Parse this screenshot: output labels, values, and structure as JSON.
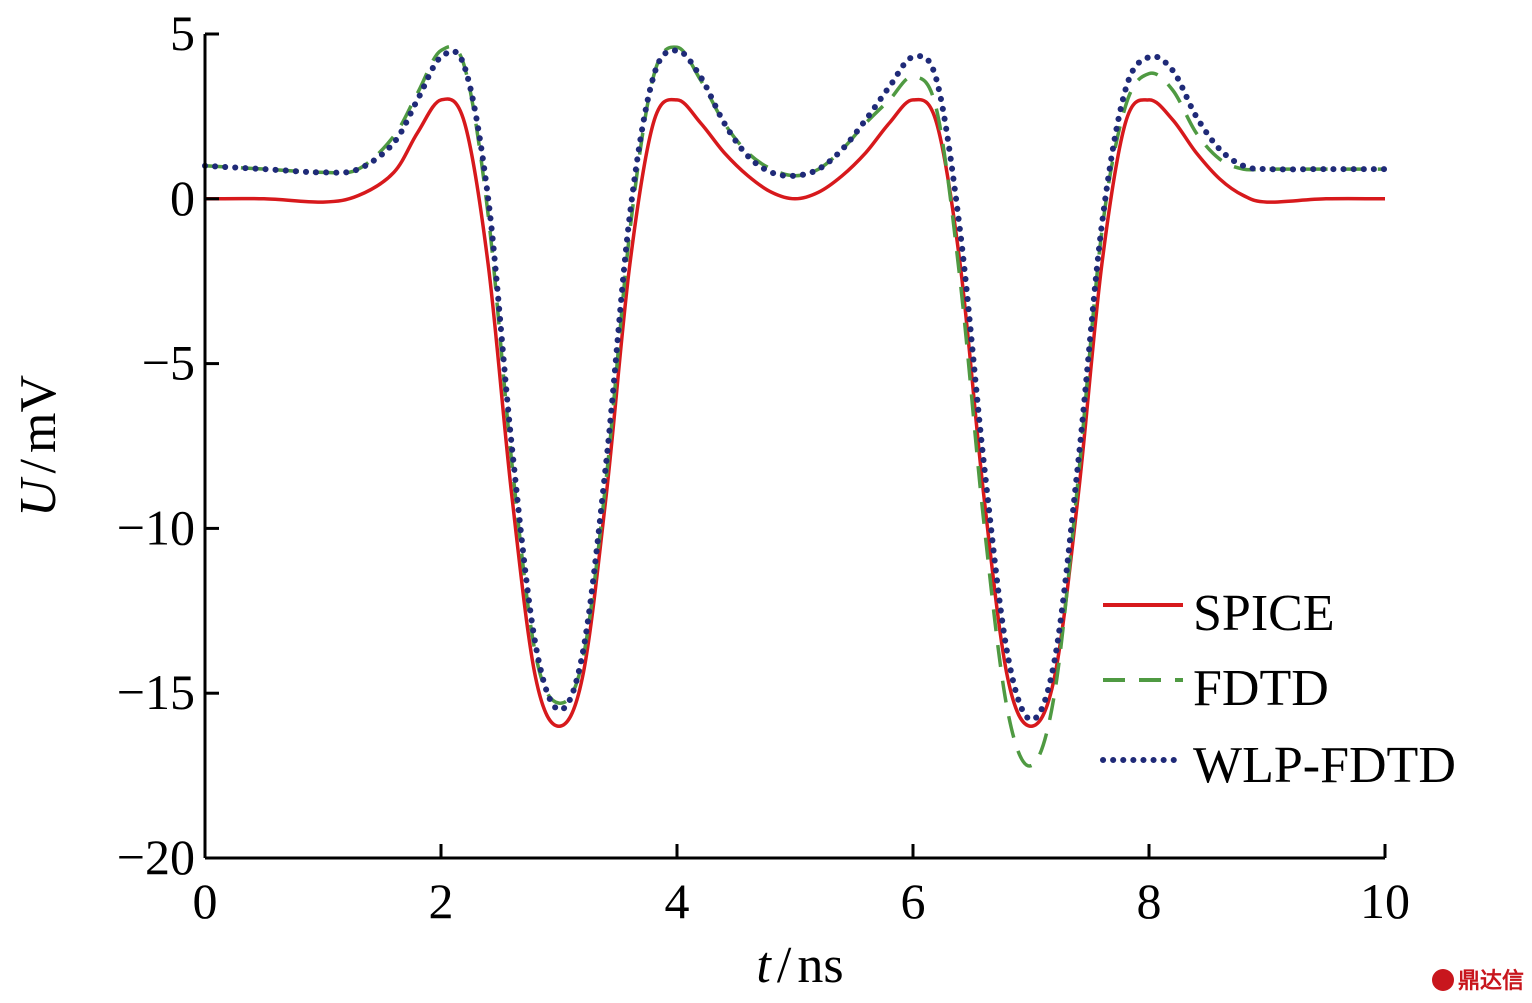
{
  "chart_data": {
    "type": "line",
    "title": "",
    "xlabel": {
      "var": "t",
      "sep": "/",
      "unit": "ns"
    },
    "ylabel": {
      "var": "U",
      "sep": "/",
      "unit": "mV"
    },
    "xlim": [
      0,
      10
    ],
    "ylim": [
      -20,
      5
    ],
    "xticks": [
      0,
      2,
      4,
      6,
      8,
      10
    ],
    "xtick_labels": [
      "0",
      "2",
      "4",
      "6",
      "8",
      "10"
    ],
    "yticks": [
      5,
      0,
      -5,
      -10,
      -15,
      -20
    ],
    "ytick_labels": [
      "5",
      "0",
      "−5",
      "−10",
      "−15",
      "−20"
    ],
    "grid": false,
    "legend_position": "lower-right",
    "series": [
      {
        "name": "SPICE",
        "color": "#d7191c",
        "style": "solid",
        "x": [
          0,
          0.5,
          1.0,
          1.3,
          1.6,
          1.8,
          2.0,
          2.2,
          2.4,
          2.6,
          2.8,
          3.0,
          3.2,
          3.4,
          3.6,
          3.8,
          4.0,
          4.2,
          4.4,
          4.6,
          4.8,
          5.0,
          5.2,
          5.4,
          5.6,
          5.8,
          6.0,
          6.2,
          6.4,
          6.6,
          6.8,
          7.0,
          7.2,
          7.4,
          7.6,
          7.8,
          8.0,
          8.2,
          8.4,
          8.6,
          8.8,
          9.0,
          9.5,
          10.0
        ],
        "y": [
          0,
          0,
          -0.1,
          0.1,
          0.8,
          2.0,
          3.0,
          2.3,
          -2.0,
          -9.0,
          -14.5,
          -16.0,
          -14.5,
          -9.0,
          -2.0,
          2.3,
          3.0,
          2.3,
          1.4,
          0.7,
          0.2,
          0,
          0.2,
          0.7,
          1.4,
          2.3,
          3.0,
          2.3,
          -2.0,
          -9.0,
          -14.5,
          -16.0,
          -14.5,
          -9.0,
          -2.0,
          2.3,
          3.0,
          2.4,
          1.4,
          0.6,
          0.1,
          -0.1,
          0,
          0
        ]
      },
      {
        "name": "FDTD",
        "color": "#4f9a42",
        "style": "dashed",
        "x": [
          0,
          0.5,
          1.0,
          1.3,
          1.6,
          1.8,
          2.0,
          2.2,
          2.4,
          2.6,
          2.8,
          3.0,
          3.2,
          3.4,
          3.6,
          3.8,
          4.0,
          4.2,
          4.4,
          4.6,
          4.8,
          5.0,
          5.2,
          5.4,
          5.6,
          5.8,
          6.0,
          6.2,
          6.4,
          6.6,
          6.8,
          7.0,
          7.2,
          7.4,
          7.6,
          7.8,
          8.0,
          8.2,
          8.4,
          8.6,
          8.8,
          9.0,
          9.5,
          10.0
        ],
        "y": [
          1.0,
          0.9,
          0.8,
          0.9,
          1.9,
          3.2,
          4.5,
          4.0,
          -0.5,
          -8.0,
          -13.8,
          -15.3,
          -14.0,
          -8.5,
          -1.0,
          3.7,
          4.6,
          3.6,
          2.3,
          1.4,
          0.9,
          0.7,
          0.9,
          1.5,
          2.3,
          3.0,
          3.7,
          2.7,
          -2.5,
          -9.8,
          -15.5,
          -17.2,
          -15.0,
          -8.5,
          -1.0,
          2.8,
          3.8,
          3.3,
          2.0,
          1.2,
          0.9,
          0.9,
          0.9,
          0.9
        ]
      },
      {
        "name": "WLP-FDTD",
        "color": "#1f2a78",
        "style": "dotted",
        "x": [
          0,
          0.5,
          1.0,
          1.3,
          1.6,
          1.8,
          2.0,
          2.2,
          2.4,
          2.6,
          2.8,
          3.0,
          3.2,
          3.4,
          3.6,
          3.8,
          4.0,
          4.2,
          4.4,
          4.6,
          4.8,
          5.0,
          5.2,
          5.4,
          5.6,
          5.8,
          6.0,
          6.2,
          6.4,
          6.6,
          6.8,
          7.0,
          7.2,
          7.4,
          7.6,
          7.8,
          8.0,
          8.2,
          8.4,
          8.6,
          8.8,
          9.0,
          9.5,
          10.0
        ],
        "y": [
          1.0,
          0.9,
          0.8,
          0.9,
          1.7,
          3.0,
          4.3,
          4.0,
          0.0,
          -7.5,
          -13.5,
          -15.5,
          -13.8,
          -8.0,
          -0.5,
          3.7,
          4.5,
          3.7,
          2.3,
          1.3,
          0.8,
          0.7,
          0.9,
          1.5,
          2.4,
          3.4,
          4.3,
          3.6,
          -1.0,
          -8.0,
          -13.8,
          -15.8,
          -14.0,
          -8.0,
          -0.8,
          3.3,
          4.3,
          3.9,
          2.5,
          1.5,
          1.0,
          0.9,
          0.9,
          0.9
        ]
      }
    ]
  },
  "watermark": {
    "text": "鼎达信",
    "icon": "logo-icon"
  }
}
